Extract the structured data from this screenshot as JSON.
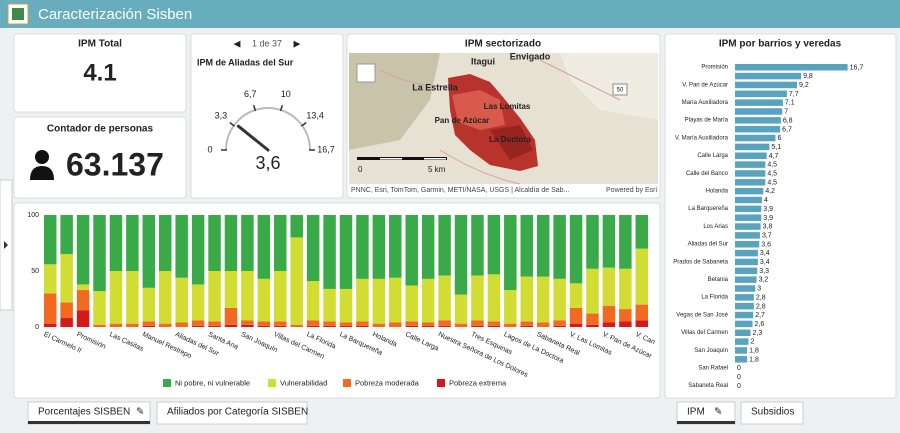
{
  "header": {
    "title": "Caracterización Sisben"
  },
  "ipm_total": {
    "title": "IPM Total",
    "value": "4.1"
  },
  "counter": {
    "title": "Contador de personas",
    "value": "63.137"
  },
  "gauge": {
    "pager": "1 de 37",
    "title": "IPM de Aliadas del Sur",
    "range": [
      0,
      16.7
    ],
    "ticks": [
      0,
      {
        "value": 3.3,
        "label": "3,3"
      },
      {
        "value": 6.7,
        "label": "6,7"
      },
      10,
      {
        "value": 13.4,
        "label": "13,4"
      },
      {
        "value": 16.7,
        "label": "16,7"
      }
    ],
    "value": 3.6,
    "value_label": "3,6"
  },
  "map": {
    "title": "IPM sectorizado",
    "labels": [
      "Itagui",
      "Envigado",
      "La Estrella",
      "Las Lomitas",
      "Pan de Azúcar",
      "La Doctora"
    ],
    "road": "50",
    "scale": [
      "0",
      "5 km"
    ],
    "attribution": "PNNC, Esri, TomTom, Garmin, METI/NASA, USGS | Alcaldía de Sab...",
    "powered": "Powered by Esri"
  },
  "stacked": {
    "type": "bar",
    "stacked": true,
    "categories": [
      "El Carmelo II",
      null,
      "Promisión",
      null,
      "Las Casitas",
      null,
      "Manuel Restrepo",
      null,
      "Aliadas del Sur",
      null,
      "Santa Ana",
      null,
      "San Joaquín",
      null,
      "Villas del Carmen",
      null,
      "La Florida",
      null,
      "La Barquereña",
      null,
      "Holanda",
      null,
      "Calle Larga",
      null,
      "Nuestra Señora de Los Dolores",
      null,
      "Tres Esquinas",
      null,
      "Lagos de La Doctora",
      null,
      "Sabaneta Real",
      null,
      "V. Las Lomitas",
      null,
      "V. Pan de Azúcar",
      null,
      "V. Can"
    ],
    "series": [
      {
        "name": "Ni pobre, ni vulnerable",
        "color": "#3aaa48",
        "values": [
          44,
          35,
          62,
          68,
          50,
          50,
          65,
          50,
          56,
          62,
          50,
          50,
          50,
          57,
          50,
          20,
          59,
          66,
          66,
          57,
          57,
          56,
          63,
          57,
          54,
          71,
          54,
          53,
          67,
          55,
          55,
          57,
          61,
          48,
          47,
          48,
          30
        ]
      },
      {
        "name": "Vulnerabilidad",
        "color": "#d2dd33",
        "values": [
          26,
          43,
          5,
          30,
          47,
          47,
          30,
          47,
          40,
          32,
          45,
          33,
          44,
          38,
          45,
          78,
          35,
          29,
          30,
          38,
          40,
          40,
          32,
          39,
          40,
          26,
          40,
          42,
          30,
          40,
          41,
          37,
          22,
          40,
          34,
          36,
          50
        ]
      },
      {
        "name": "Pobreza moderada",
        "color": "#f26a22",
        "values": [
          27,
          14,
          18,
          2,
          3,
          3,
          4,
          3,
          4,
          5,
          4,
          15,
          4,
          4,
          4,
          2,
          5,
          4,
          3,
          4,
          3,
          4,
          4,
          3,
          5,
          3,
          5,
          4,
          3,
          4,
          4,
          5,
          14,
          10,
          15,
          11,
          14
        ]
      },
      {
        "name": "Pobreza extrema",
        "color": "#d3191c",
        "values": [
          3,
          8,
          15,
          0,
          0,
          0,
          1,
          0,
          0,
          1,
          1,
          2,
          2,
          1,
          1,
          0,
          1,
          1,
          1,
          1,
          0,
          0,
          1,
          1,
          1,
          0,
          1,
          1,
          0,
          1,
          0,
          1,
          3,
          2,
          4,
          5,
          6
        ]
      }
    ],
    "ylim": [
      0,
      100
    ],
    "yticks": [
      0,
      50,
      100
    ]
  },
  "ipm_bars": {
    "type": "bar",
    "orientation": "horizontal",
    "title": "IPM por barrios y veredas",
    "categories": [
      "Promisión",
      null,
      "V. Pan de Azúcar",
      null,
      "María Auxiliadora",
      null,
      "Playas de María",
      null,
      "V. María Auxiliadora",
      null,
      "Calle Larga",
      null,
      "Calle del Banco",
      null,
      "Holanda",
      null,
      "La Barquereña",
      null,
      "Los Arias",
      null,
      "Aliadas del Sur",
      null,
      "Prados de Sabaneta",
      null,
      "Betania",
      null,
      "La Florida",
      null,
      "Vegas de San José",
      null,
      "Villas del Carmen",
      null,
      "San Joaquín",
      null,
      "San Rafael",
      null,
      "Sabaneta Real"
    ],
    "values": [
      16.7,
      9.8,
      9.2,
      7.7,
      7.1,
      7,
      6.8,
      6.7,
      6,
      5.1,
      4.7,
      4.5,
      4.5,
      4.5,
      4.2,
      4,
      3.9,
      3.9,
      3.8,
      3.7,
      3.6,
      3.4,
      3.4,
      3.3,
      3.2,
      3,
      2.8,
      2.8,
      2.7,
      2.6,
      2.3,
      2,
      1.8,
      1.8,
      0,
      0,
      0
    ],
    "value_labels": [
      "16,7",
      "9,8",
      "9,2",
      "7,7",
      "7,1",
      "7",
      "6,8",
      "6,7",
      "6",
      "5,1",
      "4,7",
      "4,5",
      "4,5",
      "4,5",
      "4,2",
      "4",
      "3,9",
      "3,9",
      "3,8",
      "3,7",
      "3,6",
      "3,4",
      "3,4",
      "3,3",
      "3,2",
      "3",
      "2,8",
      "2,8",
      "2,7",
      "2,6",
      "2,3",
      "2",
      "1,8",
      "1,8",
      "0",
      "0",
      "0"
    ],
    "color": "#5aa3bf",
    "xlim": [
      0,
      17.5
    ]
  },
  "tabs": {
    "left": [
      "Porcentajes SISBEN",
      "Afiliados por Categoría SISBEN"
    ],
    "right": [
      "IPM",
      "Subsidios"
    ]
  }
}
